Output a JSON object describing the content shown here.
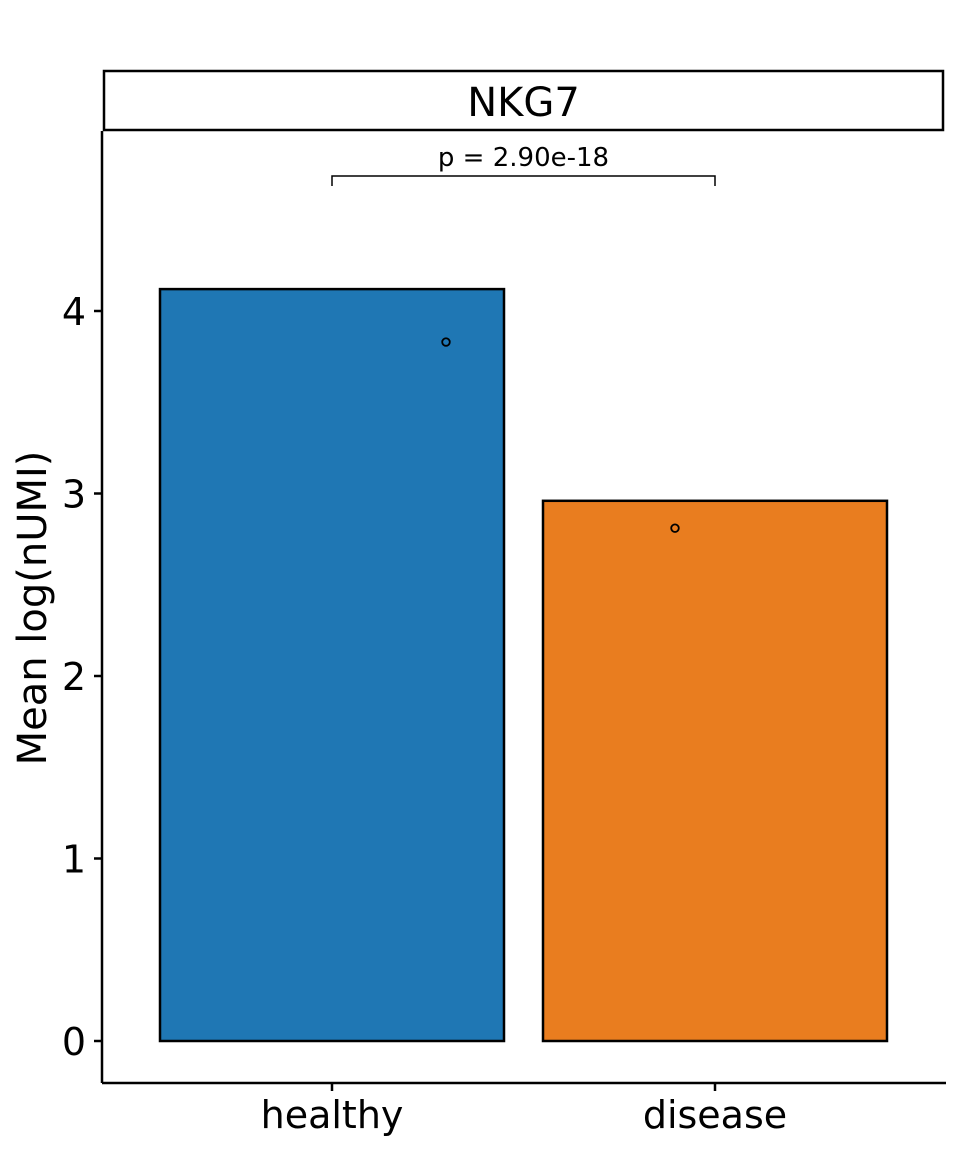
{
  "chart_data": {
    "type": "bar",
    "title": "NKG7",
    "ylabel": "Mean log(nUMI)",
    "xlabel": "",
    "categories": [
      "healthy",
      "disease"
    ],
    "values": [
      4.12,
      2.96
    ],
    "colors": [
      "#1f77b4",
      "#e97d1f"
    ],
    "points": [
      3.83,
      2.81
    ],
    "ylim": [
      -0.23,
      4.9
    ],
    "yticks": [
      0,
      1,
      2,
      3,
      4
    ],
    "grid": false,
    "annotation": {
      "text": "p = 2.90e-18",
      "from": "healthy",
      "to": "disease"
    }
  }
}
